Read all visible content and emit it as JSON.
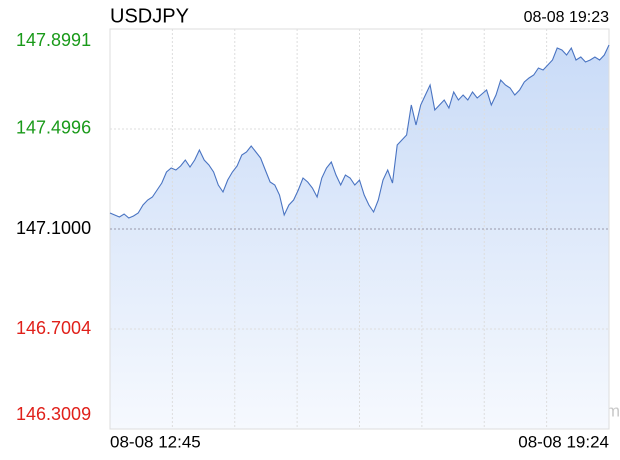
{
  "chart_data": {
    "type": "line",
    "title": "USDJPY",
    "timestamp": "08-08 19:23",
    "x_axis_labels": [
      "08-08 12:45",
      "08-08 19:24"
    ],
    "watermark": "sina.com",
    "ylim": [
      146.3009,
      147.8991
    ],
    "yticks": [
      146.3009,
      146.7004,
      {
        "value": 147.1,
        "label": "147.1000"
      },
      147.4996,
      147.8991
    ],
    "grid": true,
    "series": [
      {
        "name": "USDJPY",
        "color": "#4a74c2",
        "values": [
          147.1639,
          147.1559,
          147.148,
          147.1599,
          147.144,
          147.1519,
          147.1639,
          147.1959,
          147.2159,
          147.2279,
          147.2558,
          147.2838,
          147.3278,
          147.3438,
          147.3358,
          147.3517,
          147.3757,
          147.3478,
          147.3757,
          147.4156,
          147.3757,
          147.3557,
          147.3278,
          147.2758,
          147.2479,
          147.2958,
          147.3278,
          147.3517,
          147.3957,
          147.4077,
          147.4317,
          147.4077,
          147.3837,
          147.3358,
          147.2878,
          147.2758,
          147.2359,
          147.1559,
          147.1959,
          147.2159,
          147.2558,
          147.3038,
          147.2878,
          147.2638,
          147.2279,
          147.3038,
          147.3438,
          147.3677,
          147.3158,
          147.2758,
          147.3158,
          147.3038,
          147.2758,
          147.2958,
          147.2359,
          147.1959,
          147.1679,
          147.2159,
          147.2958,
          147.3358,
          147.2838,
          147.4357,
          147.4556,
          147.4756,
          147.5955,
          147.5156,
          147.5955,
          147.6355,
          147.6754,
          147.5755,
          147.5955,
          147.6155,
          147.5835,
          147.6475,
          147.6155,
          147.6355,
          147.6155,
          147.6475,
          147.6235,
          147.6395,
          147.6554,
          147.5955,
          147.6355,
          147.6954,
          147.6754,
          147.6634,
          147.6355,
          147.6554,
          147.6874,
          147.7034,
          147.7154,
          147.7434,
          147.7354,
          147.7553,
          147.7753,
          147.8233,
          147.8153,
          147.7953,
          147.8233,
          147.7753,
          147.7873,
          147.7673,
          147.7753,
          147.7873,
          147.7753,
          147.7953,
          147.8353
        ]
      }
    ]
  }
}
